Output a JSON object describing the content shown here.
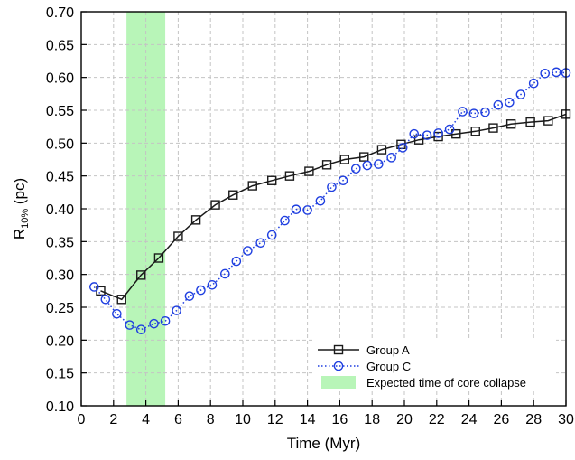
{
  "chart_data": {
    "type": "line",
    "xlabel": "Time (Myr)",
    "ylabel": {
      "main": "R",
      "sub": "10%",
      "unit": " (pc)"
    },
    "xlim": [
      0,
      30
    ],
    "ylim": [
      0.1,
      0.7
    ],
    "x_ticks": [
      0,
      2,
      4,
      6,
      8,
      10,
      12,
      14,
      16,
      18,
      20,
      22,
      24,
      26,
      28,
      30
    ],
    "y_ticks": [
      "0.10",
      "0.15",
      "0.20",
      "0.25",
      "0.30",
      "0.35",
      "0.40",
      "0.45",
      "0.50",
      "0.55",
      "0.60",
      "0.65",
      "0.70"
    ],
    "grid": true,
    "legend_position": "bottom-right",
    "shaded_region": {
      "label": "Expected time of core collapse",
      "x_range": [
        2.8,
        5.2
      ],
      "color": "#b8f5b8"
    },
    "series": [
      {
        "name": "Group A",
        "color": "#1a1a1a",
        "marker": "square",
        "line_style": "solid",
        "x": [
          1.2,
          2.5,
          3.7,
          4.8,
          6.0,
          7.1,
          8.3,
          9.4,
          10.6,
          11.8,
          12.9,
          14.1,
          15.2,
          16.3,
          17.5,
          18.6,
          19.8,
          20.9,
          22.1,
          23.2,
          24.4,
          25.5,
          26.6,
          27.8,
          28.9,
          30.0
        ],
        "y": [
          0.275,
          0.262,
          0.299,
          0.325,
          0.358,
          0.383,
          0.406,
          0.421,
          0.435,
          0.443,
          0.45,
          0.457,
          0.467,
          0.475,
          0.479,
          0.49,
          0.498,
          0.505,
          0.51,
          0.514,
          0.518,
          0.523,
          0.529,
          0.532,
          0.534,
          0.544
        ]
      },
      {
        "name": "Group C",
        "color": "#1f3fe0",
        "marker": "circle",
        "line_style": "dotted",
        "x": [
          0.8,
          1.5,
          2.2,
          3.0,
          3.7,
          4.5,
          5.2,
          5.9,
          6.7,
          7.4,
          8.1,
          8.9,
          9.6,
          10.3,
          11.1,
          11.8,
          12.6,
          13.3,
          14.0,
          14.8,
          15.5,
          16.2,
          17.0,
          17.7,
          18.4,
          19.2,
          19.9,
          20.6,
          21.4,
          22.1,
          22.8,
          23.6,
          24.3,
          25.0,
          25.8,
          26.5,
          27.2,
          28.0,
          28.7,
          29.4,
          30.0
        ],
        "y": [
          0.281,
          0.262,
          0.24,
          0.223,
          0.216,
          0.225,
          0.229,
          0.245,
          0.267,
          0.276,
          0.284,
          0.301,
          0.32,
          0.336,
          0.348,
          0.36,
          0.382,
          0.399,
          0.398,
          0.412,
          0.433,
          0.443,
          0.461,
          0.466,
          0.468,
          0.478,
          0.493,
          0.514,
          0.512,
          0.515,
          0.521,
          0.548,
          0.545,
          0.547,
          0.558,
          0.562,
          0.574,
          0.591,
          0.606,
          0.608,
          0.607
        ]
      }
    ]
  }
}
